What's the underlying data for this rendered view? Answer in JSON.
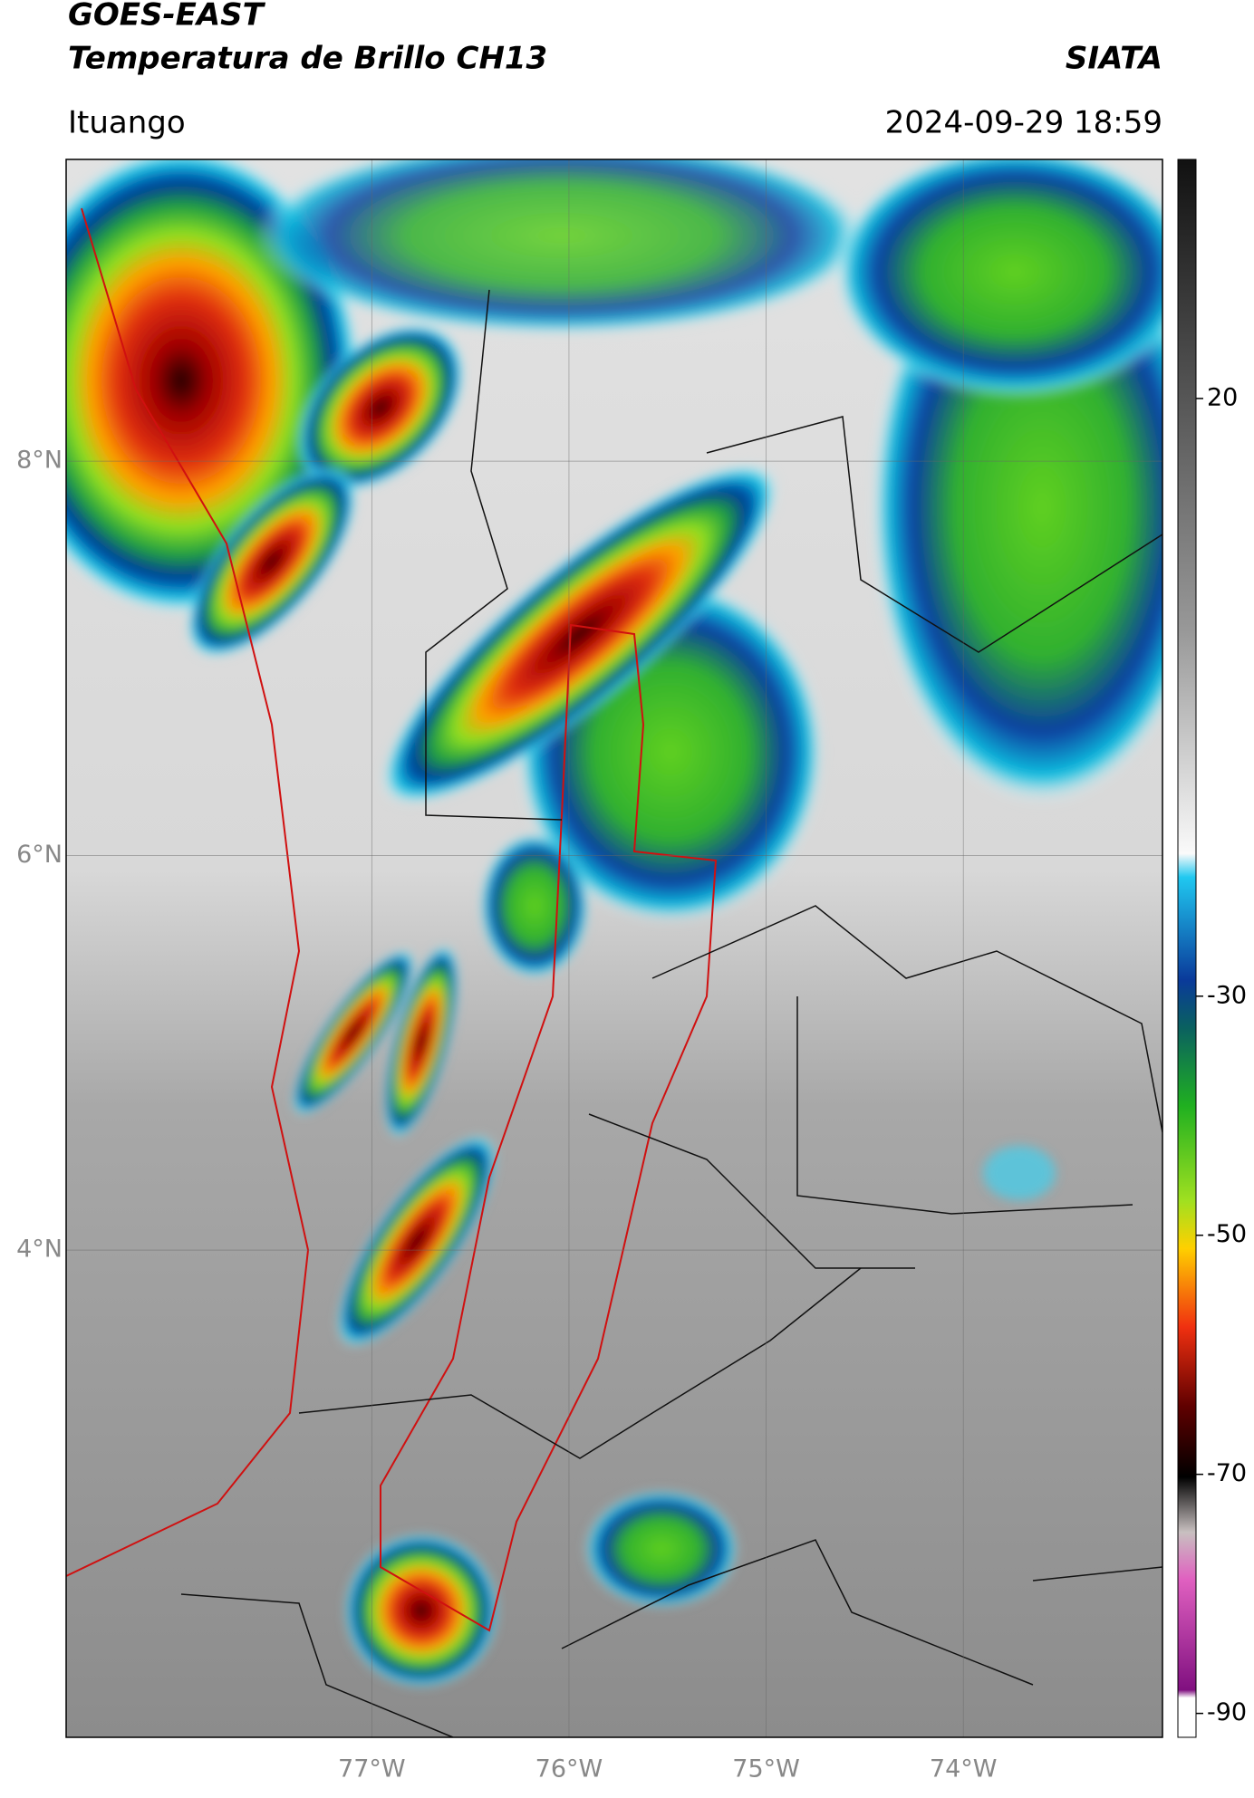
{
  "header": {
    "title_line1": "GOES-EAST",
    "title_line2": "Temperatura de Brillo CH13",
    "source": "SIATA",
    "location": "Ituango",
    "datetime": "2024-09-29 18:59"
  },
  "map": {
    "xlim": [
      -78.55,
      -72.99
    ],
    "ylim": [
      1.53,
      9.53
    ],
    "xticks": [
      {
        "value": -77,
        "label": "77°W"
      },
      {
        "value": -76,
        "label": "76°W"
      },
      {
        "value": -75,
        "label": "75°W"
      },
      {
        "value": -74,
        "label": "74°W"
      }
    ],
    "yticks": [
      {
        "value": 8,
        "label": "8°N"
      },
      {
        "value": 6,
        "label": "6°N"
      },
      {
        "value": 4,
        "label": "4°N"
      }
    ]
  },
  "colorbar": {
    "lim": [
      -92,
      40
    ],
    "ticks": [
      20,
      -30,
      -50,
      -70,
      -90
    ]
  }
}
